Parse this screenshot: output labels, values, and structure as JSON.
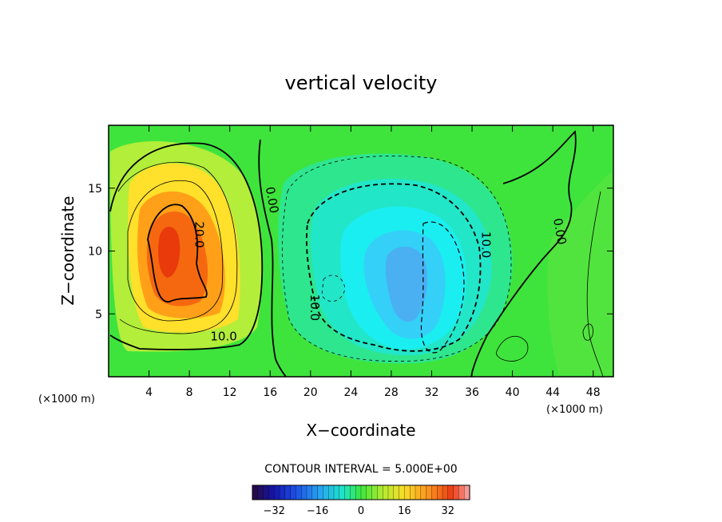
{
  "chart_data": {
    "type": "heatmap",
    "title": "vertical velocity",
    "xlabel": "X−coordinate",
    "ylabel": "Z−coordinate",
    "x_unit": "(×1000 m)",
    "y_unit": "(×1000 m)",
    "xlim": [
      0,
      50
    ],
    "ylim": [
      0,
      20
    ],
    "x_ticks": [
      "4",
      "8",
      "12",
      "16",
      "20",
      "24",
      "28",
      "32",
      "36",
      "40",
      "44",
      "48"
    ],
    "y_ticks": [
      "5",
      "10",
      "15"
    ],
    "contour_interval_label": "CONTOUR INTERVAL = 5.000E+00",
    "contour_labels": [
      {
        "text": "20.0",
        "x": 8.6,
        "y": 11.3
      },
      {
        "text": "10.0",
        "x": 11.4,
        "y": 2.9
      },
      {
        "text": "0.00",
        "x": 15.8,
        "y": 14.0
      },
      {
        "text": "10.0",
        "x": 20.0,
        "y": 5.5
      },
      {
        "text": "10.0",
        "x": 37.0,
        "y": 10.5
      },
      {
        "text": "0.00",
        "x": 44.3,
        "y": 11.5
      }
    ],
    "field_features": [
      {
        "kind": "updraft max",
        "x": 6.0,
        "y": 10.0,
        "value": 30
      },
      {
        "kind": "downdraft min",
        "x": 29.0,
        "y": 8.5,
        "value": -14
      }
    ],
    "colorbar": {
      "range": [
        -40,
        40
      ],
      "ticks": [
        "−32",
        "−16",
        "0",
        "16",
        "32"
      ],
      "tick_values": [
        -32,
        -16,
        0,
        16,
        32
      ]
    },
    "grid": false,
    "legend": "colorbar-bottom"
  }
}
